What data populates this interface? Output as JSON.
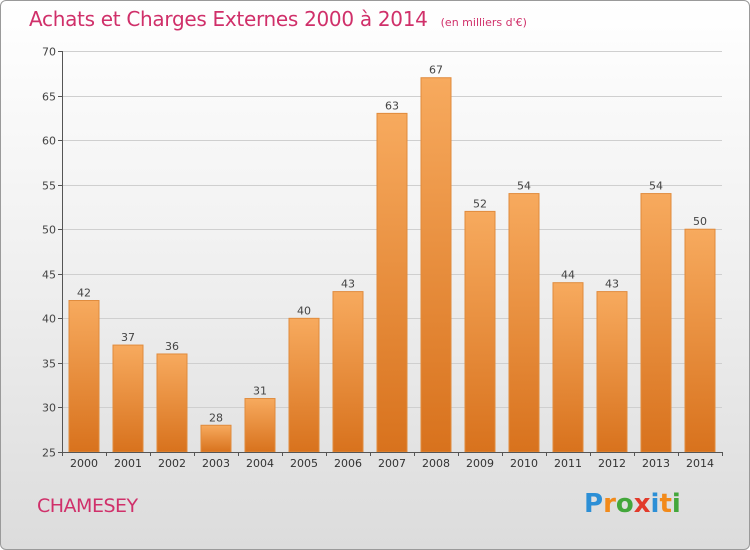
{
  "header": {
    "title": "Achats et Charges Externes 2000 à 2014",
    "unit": "(en milliers d'€)"
  },
  "footer": {
    "commune": "CHAMESEY",
    "logo_text": "Proxiti"
  },
  "colors": {
    "title": "#d0306a",
    "bar_light": "#f6a75b",
    "bar_dark": "#d9741f",
    "bar_border": "#e08b3c"
  },
  "chart_data": {
    "type": "bar",
    "title": "Achats et Charges Externes 2000 à 2014",
    "subtitle": "(en milliers d'€)",
    "xlabel": "",
    "ylabel": "",
    "categories": [
      "2000",
      "2001",
      "2002",
      "2003",
      "2004",
      "2005",
      "2006",
      "2007",
      "2008",
      "2009",
      "2010",
      "2011",
      "2012",
      "2013",
      "2014"
    ],
    "values": [
      42,
      37,
      36,
      28,
      31,
      40,
      43,
      63,
      67,
      52,
      54,
      44,
      43,
      54,
      50
    ],
    "ylim": [
      25,
      70
    ],
    "yticks": [
      25,
      30,
      35,
      40,
      45,
      50,
      55,
      60,
      65,
      70
    ],
    "grid": true,
    "data_labels": true
  }
}
